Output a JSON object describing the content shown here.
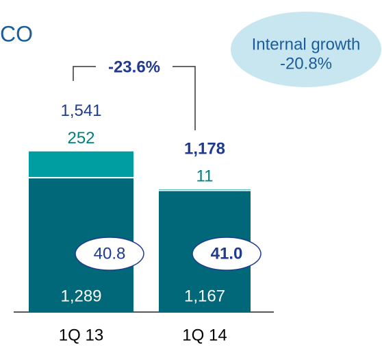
{
  "chart_data": {
    "type": "stacked_bar",
    "title": "CO",
    "categories": [
      "1Q 13",
      "1Q 14"
    ],
    "series": [
      {
        "name": null,
        "color": "#006878",
        "values": [
          1289,
          1167
        ],
        "value_labels": [
          "1,289",
          "1,167"
        ]
      },
      {
        "name": null,
        "color": "#009ea0",
        "values": [
          252,
          11
        ]
      }
    ],
    "totals": [
      1541,
      1178
    ],
    "total_labels": [
      "1,541",
      "1,178"
    ],
    "ratios": [
      40.8,
      41.0
    ],
    "ratio_labels": [
      "40.8",
      "41.0"
    ],
    "change": "-23.6%",
    "bubble": {
      "title": "Internal growth",
      "value": "-20.8%"
    }
  }
}
